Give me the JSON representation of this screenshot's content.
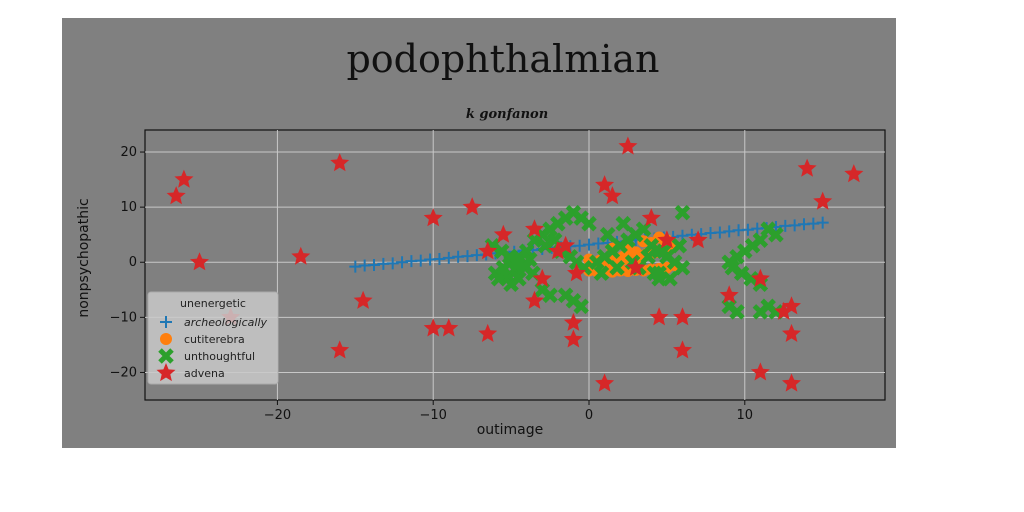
{
  "chart_data": {
    "type": "scatter",
    "title": "podophthalmian",
    "subtitle": "k gonfanon",
    "xlabel": "outimage",
    "ylabel": "nonpsychopathic",
    "xlim": [
      -28.5,
      19
    ],
    "ylim": [
      -25,
      24
    ],
    "xticks": [
      -20,
      -10,
      0,
      10
    ],
    "yticks": [
      -20,
      -10,
      0,
      10,
      20
    ],
    "grid": true,
    "legend": {
      "title": "unenergetic",
      "position": "lower-left"
    },
    "colors": {
      "frame_bg": "#808080",
      "grid": "#c8c8c8",
      "archeologically": "#1f77b4",
      "cutiterebra": "#ff7f0e",
      "unthoughtful": "#2ca02c",
      "advena": "#d62728"
    },
    "series": [
      {
        "name": "archeologically",
        "marker": "plus",
        "x": [
          -15,
          -14.4,
          -13.8,
          -13.2,
          -12.6,
          -12,
          -11.4,
          -10.8,
          -10.2,
          -9.6,
          -9,
          -8.4,
          -7.8,
          -7.2,
          -6.6,
          -6,
          -5.4,
          -4.8,
          -4.2,
          -3.6,
          -3,
          -2.4,
          -1.8,
          -1.2,
          -0.6,
          0,
          0.6,
          1.2,
          1.8,
          2.4,
          3,
          3.6,
          4.2,
          4.8,
          5.4,
          6,
          6.6,
          7.2,
          7.8,
          8.4,
          9,
          9.6,
          10.2,
          10.8,
          11.4,
          12,
          12.6,
          13.2,
          13.8,
          14.4,
          15
        ],
        "y": [
          -0.8,
          -0.6,
          -0.5,
          -0.3,
          -0.2,
          0,
          0.2,
          0.3,
          0.5,
          0.6,
          0.8,
          1,
          1.1,
          1.3,
          1.4,
          1.6,
          1.8,
          1.9,
          2.1,
          2.2,
          2.4,
          2.6,
          2.7,
          2.9,
          3,
          3.2,
          3.4,
          3.5,
          3.7,
          3.8,
          4,
          4.2,
          4.3,
          4.5,
          4.6,
          4.8,
          5,
          5.1,
          5.3,
          5.4,
          5.6,
          5.8,
          5.9,
          6.1,
          6.2,
          6.4,
          6.6,
          6.7,
          6.9,
          7,
          7.2
        ]
      },
      {
        "name": "cutiterebra",
        "marker": "circle",
        "x": [
          0,
          0.5,
          1,
          1.5,
          2,
          2.5,
          3,
          3.5,
          4,
          4.5,
          5,
          5.5,
          0.2,
          0.7,
          1.2,
          1.7,
          2.2,
          2.7,
          3.2,
          3.7,
          4.2,
          4.7,
          5.2,
          0.4,
          0.9,
          1.4,
          1.9,
          2.4,
          2.9,
          3.4,
          3.9,
          4.4,
          4.9,
          5.4,
          0,
          1,
          2,
          3,
          4,
          5,
          1.5,
          2.5,
          3.5,
          4.5
        ],
        "y": [
          -1.5,
          -1.6,
          -1.4,
          -1.7,
          -1.5,
          -1.6,
          -1.4,
          -1.5,
          -1.3,
          -1.2,
          -1,
          -0.5,
          0,
          0.3,
          0.5,
          0.7,
          1,
          1.2,
          0.8,
          1.5,
          1.8,
          2.2,
          2.5,
          -0.5,
          -0.3,
          0.1,
          0.4,
          0.6,
          0.9,
          1.1,
          1.4,
          1.9,
          2.8,
          3.2,
          0.5,
          -1,
          0.2,
          1.8,
          3.5,
          4,
          2.5,
          3,
          3.8,
          4.5
        ]
      },
      {
        "name": "unthoughtful",
        "marker": "x",
        "x": [
          -6,
          -5.5,
          -5,
          -4.5,
          -4,
          -5.8,
          -5.2,
          -4.7,
          -4.2,
          -3.8,
          -6.2,
          -5.6,
          -5.1,
          -4.6,
          -4.1,
          -3.6,
          -5,
          -4.5,
          -3.5,
          -3,
          -2.5,
          -2,
          -1.5,
          -1,
          -0.5,
          0,
          -2.8,
          -2.2,
          -1.8,
          -1.2,
          -0.8,
          -0.3,
          -1.5,
          -1,
          -0.5,
          -3,
          -2.5,
          0.5,
          1,
          1.5,
          2,
          2.5,
          3,
          3.5,
          4,
          4.5,
          5,
          5.5,
          6,
          1.2,
          2.2,
          3.2,
          4.2,
          5.2,
          0.8,
          1.8,
          2.8,
          3.8,
          4.8,
          5.8,
          6,
          4.5,
          4.5,
          9,
          9.5,
          10,
          10.5,
          11,
          9.2,
          9.8,
          10.4,
          11,
          9,
          9.5,
          11.5,
          12,
          11,
          11.5,
          12
        ],
        "y": [
          -2,
          -1,
          0,
          1,
          2,
          -3,
          -2.5,
          -1.5,
          -0.5,
          0.5,
          3,
          2,
          1,
          0,
          -1,
          -2,
          -4,
          -3,
          4,
          5,
          6,
          7,
          8,
          9,
          8,
          7,
          3,
          4,
          2,
          1,
          0,
          -1,
          -6,
          -7,
          -8,
          -5,
          -6,
          0,
          1,
          2,
          3,
          4,
          5,
          6,
          3,
          2,
          1,
          0,
          -1,
          5,
          7,
          -1,
          -2,
          -3,
          -2,
          -1,
          0,
          1,
          2,
          3,
          9,
          -3,
          -2,
          0,
          1,
          2,
          3,
          4,
          -1,
          -2,
          -3,
          -4,
          -8,
          -9,
          6,
          5,
          -9,
          -8,
          -9
        ]
      },
      {
        "name": "advena",
        "marker": "star",
        "x": [
          -26,
          -26.5,
          -25,
          -18.5,
          -16,
          -14.5,
          -10,
          -10,
          -9,
          -7.5,
          -6.5,
          -6.5,
          -5.5,
          -3.5,
          -3.5,
          -3,
          -2,
          -1.5,
          -1,
          -1,
          -0.8,
          1,
          1,
          1.5,
          2.5,
          4,
          4.5,
          5,
          6,
          6,
          7,
          9,
          11,
          11,
          12.5,
          13,
          13,
          13,
          14,
          15,
          17,
          -16,
          -23,
          3
        ],
        "y": [
          15,
          12,
          0,
          1,
          -16,
          -7,
          8,
          -12,
          -12,
          10,
          2,
          -13,
          5,
          6,
          -7,
          -3,
          2,
          3,
          -14,
          -11,
          -2,
          14,
          -22,
          12,
          21,
          8,
          -10,
          4,
          -16,
          -10,
          4,
          -6,
          -3,
          -20,
          -9,
          -8,
          -13,
          -22,
          17,
          11,
          16,
          18,
          -10,
          -1
        ]
      }
    ]
  }
}
